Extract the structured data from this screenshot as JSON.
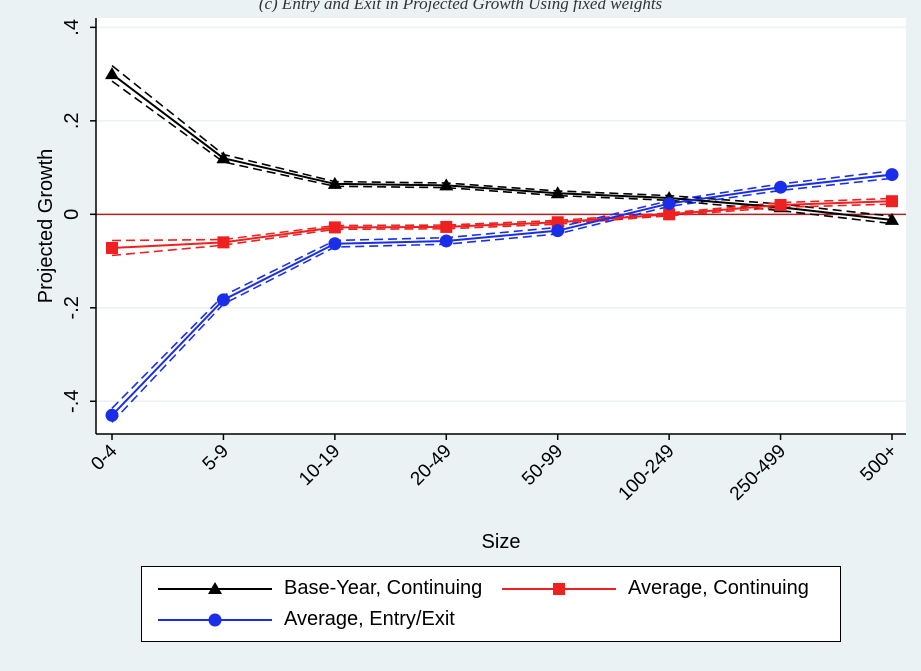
{
  "caption": "(c) Entry and Exit in Projected Growth Using fixed weights",
  "chart_data": {
    "type": "line",
    "categories": [
      "0-4",
      "5-9",
      "10-19",
      "20-49",
      "50-99",
      "100-249",
      "250-499",
      "500+"
    ],
    "xlabel": "Size",
    "ylabel": "Projected Growth",
    "ylim": [
      -0.47,
      0.42
    ],
    "yticks": [
      -0.4,
      -0.2,
      0,
      0.2,
      0.4
    ],
    "ytick_labels": [
      "-.4",
      "-.2",
      "0",
      ".2",
      ".4"
    ],
    "grid": true,
    "zero_line_color": "#b02020",
    "legend_position": "bottom",
    "series": [
      {
        "name": "Base-Year, Continuing",
        "color": "#000000",
        "marker": "triangle",
        "values": [
          0.3,
          0.12,
          0.065,
          0.062,
          0.045,
          0.035,
          0.015,
          -0.012
        ],
        "ci_lower": [
          0.285,
          0.112,
          0.06,
          0.057,
          0.04,
          0.03,
          0.008,
          -0.02
        ],
        "ci_upper": [
          0.318,
          0.128,
          0.07,
          0.067,
          0.05,
          0.04,
          0.022,
          -0.004
        ]
      },
      {
        "name": "Average, Continuing",
        "color": "#ee2020",
        "marker": "square",
        "values": [
          -0.072,
          -0.06,
          -0.028,
          -0.027,
          -0.017,
          0.0,
          0.02,
          0.028
        ],
        "ci_lower": [
          -0.088,
          -0.066,
          -0.032,
          -0.031,
          -0.021,
          -0.003,
          0.015,
          0.022
        ],
        "ci_upper": [
          -0.056,
          -0.054,
          -0.024,
          -0.023,
          -0.013,
          0.003,
          0.025,
          0.034
        ]
      },
      {
        "name": "Average, Entry/Exit",
        "color": "#1a2ee8",
        "marker": "circle",
        "values": [
          -0.43,
          -0.183,
          -0.063,
          -0.057,
          -0.035,
          0.023,
          0.058,
          0.085
        ],
        "ci_lower": [
          -0.445,
          -0.192,
          -0.07,
          -0.064,
          -0.042,
          0.017,
          0.051,
          0.077
        ],
        "ci_upper": [
          -0.415,
          -0.174,
          -0.056,
          -0.05,
          -0.028,
          0.029,
          0.065,
          0.093
        ]
      }
    ],
    "legend": [
      {
        "label": "Base-Year, Continuing"
      },
      {
        "label": "Average, Continuing"
      },
      {
        "label": "Average, Entry/Exit"
      }
    ]
  }
}
